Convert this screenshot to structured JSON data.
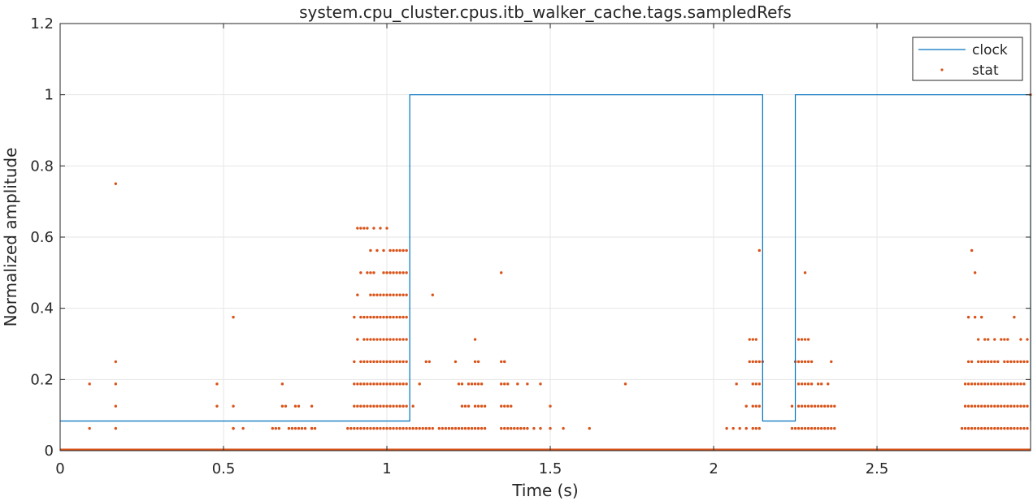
{
  "chart_data": {
    "type": "line",
    "title": "system.cpu_cluster.cpus.itb_walker_cache.tags.sampledRefs",
    "xlabel": "Time (s)",
    "ylabel": "Normalized amplitude",
    "xlim": [
      0,
      2.97
    ],
    "ylim": [
      0,
      1.2
    ],
    "xticks": [
      0,
      0.5,
      1,
      1.5,
      2,
      2.5
    ],
    "xtick_labels": [
      "0",
      "0.5",
      "1",
      "1.5",
      "2",
      "2.5"
    ],
    "yticks": [
      0,
      0.2,
      0.4,
      0.6,
      0.8,
      1,
      1.2
    ],
    "ytick_labels": [
      "0",
      "0.2",
      "0.4",
      "0.6",
      "0.8",
      "1",
      "1.2"
    ],
    "grid": true,
    "legend_position": "top-right",
    "colors": {
      "clock": "#0072BD",
      "stat": "#D95319",
      "grid": "#e6e6e6",
      "axis": "#262626"
    },
    "series": [
      {
        "name": "clock",
        "style": "step-line",
        "x": [
          0,
          1.07,
          1.07,
          2.15,
          2.15,
          2.25,
          2.25,
          2.97,
          2.97
        ],
        "y": [
          0.0833,
          0.0833,
          1,
          1,
          0.0833,
          0.0833,
          1,
          1,
          0.0833
        ]
      },
      {
        "name": "stat",
        "style": "dots",
        "x": [
          0.09,
          0.09,
          0.17,
          0.17,
          0.17,
          0.17,
          0.17,
          0.48,
          0.48,
          0.53,
          0.53,
          0.53,
          0.53,
          0.56,
          0.65,
          0.66,
          0.67,
          0.68,
          0.68,
          0.69,
          0.7,
          0.71,
          0.72,
          0.72,
          0.73,
          0.73,
          0.74,
          0.75,
          0.77,
          0.77,
          0.77,
          0.78,
          0.88,
          0.89,
          0.9,
          0.9,
          0.9,
          0.9,
          0.9,
          0.91,
          0.91,
          0.91,
          0.91,
          0.91,
          0.91,
          0.92,
          0.92,
          0.92,
          0.92,
          0.92,
          0.92,
          0.92,
          0.93,
          0.93,
          0.93,
          0.93,
          0.93,
          0.93,
          0.93,
          0.94,
          0.94,
          0.94,
          0.94,
          0.94,
          0.94,
          0.94,
          0.94,
          0.95,
          0.95,
          0.95,
          0.95,
          0.95,
          0.95,
          0.95,
          0.95,
          0.95,
          0.96,
          0.96,
          0.96,
          0.96,
          0.96,
          0.96,
          0.96,
          0.96,
          0.96,
          0.97,
          0.97,
          0.97,
          0.97,
          0.97,
          0.97,
          0.97,
          0.97,
          0.98,
          0.98,
          0.98,
          0.98,
          0.98,
          0.98,
          0.98,
          0.98,
          0.99,
          0.99,
          0.99,
          0.99,
          0.99,
          0.99,
          0.99,
          0.99,
          0.99,
          1.0,
          1.0,
          1.0,
          1.0,
          1.0,
          1.0,
          1.0,
          1.0,
          1.0,
          1.01,
          1.01,
          1.01,
          1.01,
          1.01,
          1.01,
          1.01,
          1.01,
          1.01,
          1.02,
          1.02,
          1.02,
          1.02,
          1.02,
          1.02,
          1.02,
          1.02,
          1.02,
          1.03,
          1.03,
          1.03,
          1.03,
          1.03,
          1.03,
          1.03,
          1.03,
          1.03,
          1.04,
          1.04,
          1.04,
          1.04,
          1.04,
          1.04,
          1.04,
          1.04,
          1.04,
          1.05,
          1.05,
          1.05,
          1.05,
          1.05,
          1.05,
          1.05,
          1.05,
          1.05,
          1.06,
          1.06,
          1.06,
          1.06,
          1.06,
          1.06,
          1.06,
          1.06,
          1.06,
          1.07,
          1.08,
          1.08,
          1.09,
          1.1,
          1.1,
          1.11,
          1.12,
          1.12,
          1.13,
          1.13,
          1.14,
          1.14,
          1.16,
          1.17,
          1.18,
          1.19,
          1.2,
          1.21,
          1.21,
          1.22,
          1.22,
          1.23,
          1.23,
          1.23,
          1.24,
          1.24,
          1.25,
          1.25,
          1.25,
          1.26,
          1.26,
          1.27,
          1.27,
          1.27,
          1.27,
          1.27,
          1.28,
          1.28,
          1.28,
          1.28,
          1.29,
          1.29,
          1.29,
          1.3,
          1.3,
          1.35,
          1.35,
          1.35,
          1.35,
          1.35,
          1.36,
          1.36,
          1.36,
          1.36,
          1.36,
          1.37,
          1.37,
          1.37,
          1.38,
          1.38,
          1.39,
          1.4,
          1.4,
          1.41,
          1.42,
          1.43,
          1.43,
          1.45,
          1.47,
          1.47,
          1.5,
          1.5,
          1.54,
          1.62,
          1.73,
          2.04,
          2.06,
          2.07,
          2.08,
          2.1,
          2.1,
          2.11,
          2.11,
          2.12,
          2.12,
          2.12,
          2.12,
          2.12,
          2.13,
          2.13,
          2.13,
          2.13,
          2.13,
          2.14,
          2.14,
          2.14,
          2.14,
          2.14,
          2.15,
          2.24,
          2.24,
          2.25,
          2.25,
          2.26,
          2.26,
          2.26,
          2.26,
          2.26,
          2.27,
          2.27,
          2.27,
          2.27,
          2.27,
          2.28,
          2.28,
          2.28,
          2.28,
          2.28,
          2.28,
          2.29,
          2.29,
          2.29,
          2.29,
          2.29,
          2.3,
          2.3,
          2.3,
          2.3,
          2.31,
          2.31,
          2.32,
          2.32,
          2.32,
          2.33,
          2.33,
          2.33,
          2.34,
          2.34,
          2.35,
          2.35,
          2.35,
          2.36,
          2.36,
          2.36,
          2.37,
          2.37,
          2.76,
          2.77,
          2.77,
          2.77,
          2.78,
          2.78,
          2.78,
          2.78,
          2.78,
          2.79,
          2.79,
          2.79,
          2.79,
          2.79,
          2.8,
          2.8,
          2.8,
          2.8,
          2.8,
          2.81,
          2.81,
          2.81,
          2.81,
          2.81,
          2.82,
          2.82,
          2.82,
          2.82,
          2.82,
          2.83,
          2.83,
          2.83,
          2.83,
          2.83,
          2.84,
          2.84,
          2.84,
          2.84,
          2.84,
          2.85,
          2.85,
          2.85,
          2.85,
          2.86,
          2.86,
          2.86,
          2.86,
          2.86,
          2.87,
          2.87,
          2.87,
          2.87,
          2.88,
          2.88,
          2.88,
          2.88,
          2.89,
          2.89,
          2.89,
          2.89,
          2.89,
          2.9,
          2.9,
          2.9,
          2.9,
          2.9,
          2.91,
          2.91,
          2.91,
          2.91,
          2.92,
          2.92,
          2.92,
          2.92,
          2.92,
          2.93,
          2.93,
          2.93,
          2.93,
          2.94,
          2.94,
          2.94,
          2.94,
          2.94,
          2.95,
          2.95,
          2.95,
          2.95,
          2.96,
          2.96,
          2.96,
          2.96,
          2.97
        ],
        "y": [
          0.0625,
          0.1875,
          0.0625,
          0.125,
          0.1875,
          0.25,
          0.75,
          0.125,
          0.1875,
          0.0625,
          0.125,
          0.375,
          0.0625,
          0.0625,
          0.0625,
          0.0625,
          0.0625,
          0.1875,
          0.125,
          0.125,
          0.0625,
          0.0625,
          0.125,
          0.0625,
          0.125,
          0.0625,
          0.0625,
          0.0625,
          0.125,
          0.0625,
          0.0625,
          0.0625,
          0.0625,
          0.0625,
          0.0625,
          0.125,
          0.1875,
          0.25,
          0.375,
          0.0625,
          0.125,
          0.1875,
          0.3125,
          0.4375,
          0.625,
          0.0625,
          0.125,
          0.1875,
          0.25,
          0.375,
          0.5,
          0.625,
          0.0625,
          0.125,
          0.1875,
          0.25,
          0.3125,
          0.375,
          0.625,
          0.0625,
          0.125,
          0.1875,
          0.25,
          0.3125,
          0.375,
          0.5,
          0.625,
          0.0625,
          0.125,
          0.1875,
          0.25,
          0.3125,
          0.375,
          0.4375,
          0.5,
          0.5625,
          0.0625,
          0.125,
          0.1875,
          0.25,
          0.3125,
          0.375,
          0.4375,
          0.5,
          0.625,
          0.0625,
          0.125,
          0.1875,
          0.25,
          0.3125,
          0.375,
          0.4375,
          0.5625,
          0.0625,
          0.125,
          0.1875,
          0.25,
          0.3125,
          0.375,
          0.4375,
          0.625,
          0.0625,
          0.125,
          0.1875,
          0.25,
          0.3125,
          0.375,
          0.4375,
          0.5,
          0.5625,
          0.0625,
          0.125,
          0.1875,
          0.25,
          0.3125,
          0.375,
          0.4375,
          0.5,
          0.625,
          0.0625,
          0.125,
          0.1875,
          0.25,
          0.3125,
          0.375,
          0.4375,
          0.5,
          0.5625,
          0.0625,
          0.125,
          0.1875,
          0.25,
          0.3125,
          0.375,
          0.4375,
          0.5,
          0.5625,
          0.0625,
          0.125,
          0.1875,
          0.25,
          0.3125,
          0.375,
          0.4375,
          0.5,
          0.5625,
          0.0625,
          0.125,
          0.1875,
          0.25,
          0.3125,
          0.375,
          0.4375,
          0.5,
          0.5625,
          0.0625,
          0.125,
          0.1875,
          0.25,
          0.3125,
          0.375,
          0.4375,
          0.5,
          0.5625,
          0.0625,
          0.125,
          0.1875,
          0.25,
          0.3125,
          0.375,
          0.4375,
          0.5,
          0.5625,
          0.0625,
          0.0625,
          0.125,
          0.0625,
          0.0625,
          0.1875,
          0.0625,
          0.0625,
          0.25,
          0.0625,
          0.25,
          0.0625,
          0.4375,
          0.0625,
          0.0625,
          0.0625,
          0.0625,
          0.0625,
          0.0625,
          0.25,
          0.0625,
          0.1875,
          0.0625,
          0.125,
          0.1875,
          0.0625,
          0.125,
          0.0625,
          0.125,
          0.1875,
          0.0625,
          0.1875,
          0.0625,
          0.125,
          0.1875,
          0.25,
          0.3125,
          0.0625,
          0.125,
          0.1875,
          0.25,
          0.0625,
          0.125,
          0.1875,
          0.0625,
          0.125,
          0.0625,
          0.125,
          0.1875,
          0.25,
          0.5,
          0.0625,
          0.125,
          0.1875,
          0.25,
          0.25,
          0.0625,
          0.125,
          0.1875,
          0.0625,
          0.125,
          0.0625,
          0.0625,
          0.1875,
          0.0625,
          0.0625,
          0.0625,
          0.1875,
          0.0625,
          0.0625,
          0.1875,
          0.0625,
          0.125,
          0.0625,
          0.0625,
          0.1875,
          0.0625,
          0.0625,
          0.1875,
          0.0625,
          0.125,
          0.0625,
          0.25,
          0.3125,
          0.0625,
          0.125,
          0.1875,
          0.25,
          0.3125,
          0.0625,
          0.125,
          0.1875,
          0.25,
          0.3125,
          0.0625,
          0.125,
          0.1875,
          0.25,
          0.5625,
          0.25,
          0.0625,
          0.125,
          0.0625,
          0.25,
          0.0625,
          0.125,
          0.1875,
          0.25,
          0.3125,
          0.0625,
          0.125,
          0.1875,
          0.25,
          0.3125,
          0.0625,
          0.125,
          0.1875,
          0.25,
          0.3125,
          0.5,
          0.0625,
          0.125,
          0.1875,
          0.25,
          0.3125,
          0.0625,
          0.125,
          0.1875,
          0.25,
          0.0625,
          0.125,
          0.0625,
          0.125,
          0.1875,
          0.0625,
          0.125,
          0.1875,
          0.0625,
          0.125,
          0.0625,
          0.125,
          0.1875,
          0.0625,
          0.125,
          0.25,
          0.0625,
          0.125,
          0.0625,
          0.0625,
          0.125,
          0.1875,
          0.0625,
          0.125,
          0.1875,
          0.25,
          0.375,
          0.0625,
          0.125,
          0.1875,
          0.25,
          0.5625,
          0.0625,
          0.125,
          0.1875,
          0.375,
          0.5,
          0.0625,
          0.125,
          0.1875,
          0.25,
          0.3125,
          0.0625,
          0.125,
          0.1875,
          0.25,
          0.375,
          0.0625,
          0.125,
          0.1875,
          0.25,
          0.3125,
          0.0625,
          0.125,
          0.1875,
          0.25,
          0.3125,
          0.0625,
          0.125,
          0.1875,
          0.25,
          0.0625,
          0.125,
          0.1875,
          0.25,
          0.3125,
          0.0625,
          0.125,
          0.1875,
          0.25,
          0.0625,
          0.125,
          0.1875,
          0.3125,
          0.0625,
          0.125,
          0.1875,
          0.25,
          0.3125,
          0.0625,
          0.125,
          0.1875,
          0.25,
          0.3125,
          0.0625,
          0.125,
          0.1875,
          0.25,
          0.0625,
          0.125,
          0.1875,
          0.25,
          0.375,
          0.0625,
          0.125,
          0.1875,
          0.25,
          0.0625,
          0.125,
          0.1875,
          0.25,
          0.3125,
          0.0625,
          0.125,
          0.1875,
          0.25,
          0.0625,
          0.125,
          0.25,
          0.3125,
          1.0
        ]
      }
    ]
  }
}
